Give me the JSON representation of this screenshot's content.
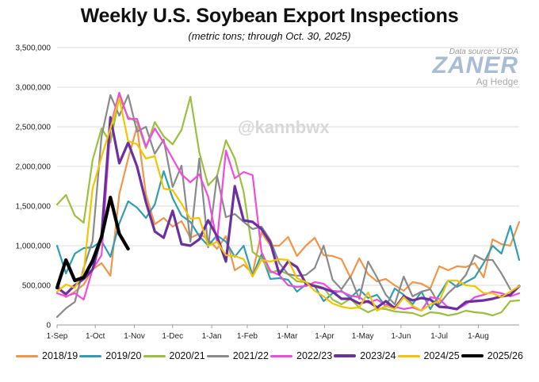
{
  "chart_data": {
    "type": "line",
    "title": "Weekly U.S. Soybean Export Inspections",
    "subtitle": "(metric tons; through Oct. 30, 2025)",
    "source_note": "Data source: USDA",
    "brand": {
      "name": "ZANER",
      "sub": "Ag Hedge"
    },
    "watermark": "@kannbwx",
    "ylim": [
      0,
      3500000
    ],
    "yticks": [
      0,
      500000,
      1000000,
      1500000,
      2000000,
      2500000,
      3000000,
      3500000
    ],
    "ytick_labels": [
      "0",
      "500,000",
      "1,000,000",
      "1,500,000",
      "2,000,000",
      "2,500,000",
      "3,000,000",
      "3,500,000"
    ],
    "xlim": [
      0,
      52
    ],
    "xticks": [
      0,
      4.3,
      8.7,
      13,
      17.4,
      21.4,
      25.9,
      30.1,
      34.4,
      38.7,
      43.0,
      47.4
    ],
    "xtick_labels": [
      "1-Sep",
      "1-Oct",
      "1-Nov",
      "1-Dec",
      "1-Jan",
      "1-Feb",
      "1-Mar",
      "1-Apr",
      "1-May",
      "1-Jun",
      "1-Jul",
      "1-Aug"
    ],
    "grid": "horizontal",
    "legend_position": "bottom",
    "series": [
      {
        "name": "2018/19",
        "color": "#f0954a",
        "width": 2.2,
        "values": [
          520000,
          350000,
          420000,
          510000,
          700000,
          780000,
          620000,
          1650000,
          2100000,
          2500000,
          1650000,
          1270000,
          1350000,
          1240000,
          1310000,
          1100000,
          1150000,
          1080000,
          960000,
          1120000,
          690000,
          760000,
          650000,
          1170000,
          1000000,
          1000000,
          1110000,
          870000,
          1000000,
          1100000,
          880000,
          870000,
          830000,
          600000,
          840000,
          640000,
          550000,
          580000,
          500000,
          430000,
          540000,
          520000,
          460000,
          740000,
          690000,
          740000,
          730000,
          780000,
          600000,
          1080000,
          1020000,
          1000000,
          1300000
        ]
      },
      {
        "name": "2019/20",
        "color": "#2e9eb0",
        "width": 2.2,
        "values": [
          1000000,
          650000,
          900000,
          970000,
          980000,
          1060000,
          860000,
          1280000,
          1560000,
          1480000,
          1350000,
          1520000,
          1940000,
          1600000,
          1380000,
          1300000,
          1120000,
          1000000,
          1130000,
          1050000,
          860000,
          1000000,
          620000,
          890000,
          580000,
          590000,
          570000,
          420000,
          510000,
          490000,
          300000,
          400000,
          430000,
          340000,
          450000,
          340000,
          380000,
          230000,
          460000,
          380000,
          260000,
          420000,
          200000,
          380000,
          560000,
          480000,
          540000,
          600000,
          780000,
          1000000,
          900000,
          1250000,
          820000
        ]
      },
      {
        "name": "2020/21",
        "color": "#9bbf3f",
        "width": 2.2,
        "values": [
          1520000,
          1640000,
          1380000,
          1290000,
          2080000,
          2480000,
          2300000,
          2880000,
          2620000,
          2560000,
          2230000,
          2560000,
          2380000,
          2280000,
          2460000,
          2880000,
          2180000,
          1760000,
          1880000,
          2330000,
          2100000,
          1680000,
          920000,
          840000,
          660000,
          690000,
          640000,
          550000,
          540000,
          500000,
          470000,
          320000,
          260000,
          330000,
          220000,
          160000,
          210000,
          200000,
          170000,
          160000,
          150000,
          110000,
          160000,
          150000,
          120000,
          140000,
          180000,
          160000,
          150000,
          120000,
          160000,
          300000,
          310000
        ]
      },
      {
        "name": "2021/22",
        "color": "#8a8a8a",
        "width": 2.2,
        "values": [
          100000,
          210000,
          290000,
          720000,
          1060000,
          2380000,
          2900000,
          2640000,
          2900000,
          2440000,
          2500000,
          2160000,
          2340000,
          1740000,
          2010000,
          1050000,
          2100000,
          980000,
          1880000,
          1360000,
          1400000,
          1300000,
          1210000,
          1240000,
          1070000,
          780000,
          640000,
          620000,
          630000,
          720000,
          1000000,
          570000,
          450000,
          610000,
          330000,
          800000,
          600000,
          380000,
          260000,
          610000,
          360000,
          420000,
          450000,
          260000,
          400000,
          500000,
          630000,
          880000,
          820000,
          820000,
          650000,
          450000
        ]
      },
      {
        "name": "2022/23",
        "color": "#f04be0",
        "width": 2.2,
        "values": [
          400000,
          360000,
          400000,
          320000,
          700000,
          880000,
          2500000,
          2930000,
          2600000,
          2600000,
          2250000,
          2480000,
          2300000,
          2100000,
          1900000,
          1800000,
          1900000,
          1620000,
          1050000,
          2200000,
          1850000,
          1930000,
          1890000,
          920000,
          680000,
          630000,
          500000,
          480000,
          490000,
          540000,
          520000,
          430000,
          420000,
          370000,
          350000,
          280000,
          320000,
          250000,
          230000,
          200000,
          220000,
          180000,
          350000,
          330000,
          220000,
          200000,
          260000,
          350000,
          380000,
          420000,
          400000,
          360000,
          400000
        ]
      },
      {
        "name": "2023/24",
        "color": "#6b2fa0",
        "width": 3.2,
        "values": [
          470000,
          390000,
          500000,
          580000,
          700000,
          1120000,
          2620000,
          2040000,
          2300000,
          2000000,
          1550000,
          1180000,
          1100000,
          1440000,
          1020000,
          1000000,
          1080000,
          1320000,
          1120000,
          800000,
          1750000,
          1320000,
          1300000,
          1210000,
          1040000,
          640000,
          800000,
          730000,
          520000,
          490000,
          460000,
          420000,
          330000,
          330000,
          270000,
          300000,
          220000,
          300000,
          210000,
          360000,
          310000,
          340000,
          320000,
          230000,
          220000,
          200000,
          290000,
          300000,
          310000,
          330000,
          360000,
          380000,
          490000
        ]
      },
      {
        "name": "2024/25",
        "color": "#f4c400",
        "width": 2.2,
        "values": [
          420000,
          510000,
          470000,
          670000,
          1720000,
          2120000,
          2480000,
          2860000,
          2320000,
          2280000,
          2100000,
          2130000,
          1720000,
          1700000,
          1530000,
          1340000,
          1350000,
          1000000,
          1050000,
          880000,
          870000,
          830000,
          610000,
          820000,
          800000,
          830000,
          820000,
          590000,
          540000,
          430000,
          360000,
          270000,
          230000,
          210000,
          220000,
          410000,
          180000,
          240000,
          200000,
          350000,
          240000,
          180000,
          260000,
          300000,
          560000,
          560000,
          500000,
          490000,
          400000,
          400000,
          350000,
          420000,
          490000
        ]
      },
      {
        "name": "2025/26",
        "color": "#000000",
        "width": 4.2,
        "values": [
          470000,
          820000,
          560000,
          600000,
          810000,
          1110000,
          1610000,
          1150000,
          960000
        ]
      }
    ]
  }
}
